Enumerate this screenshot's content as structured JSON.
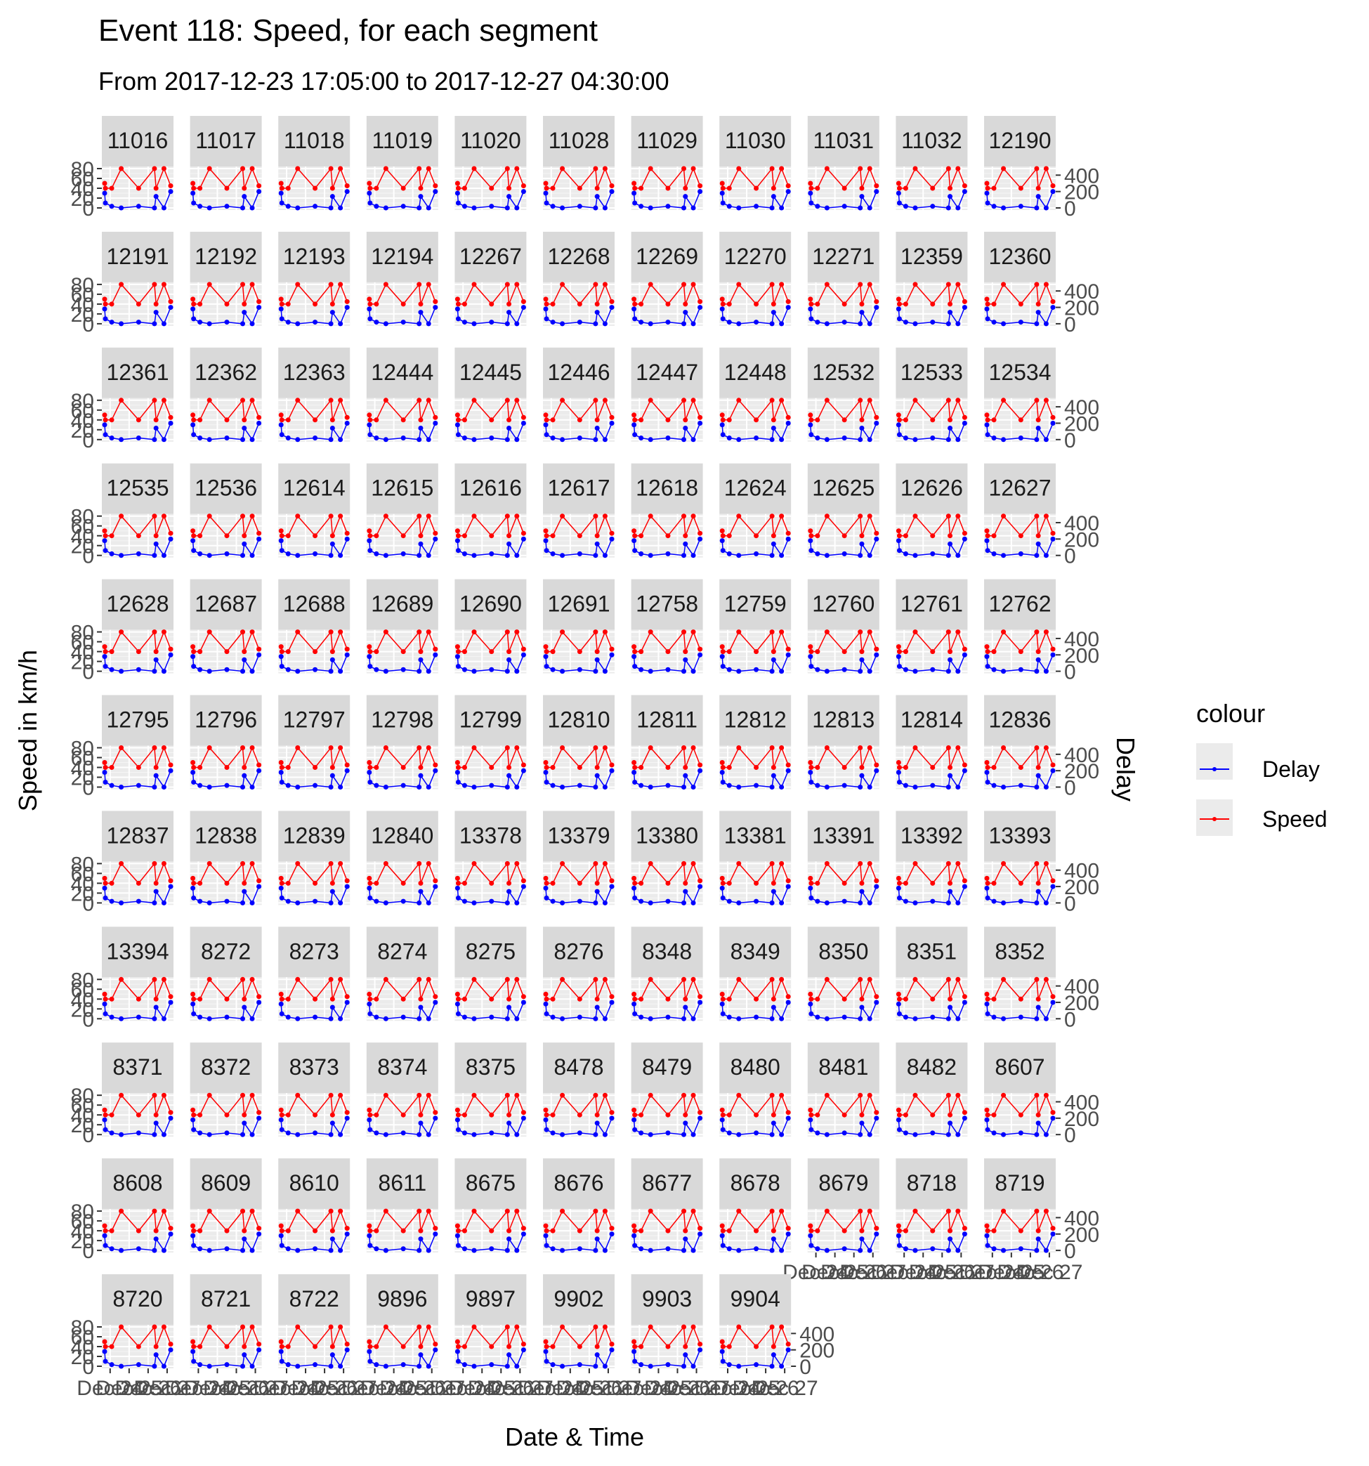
{
  "chart_data": {
    "type": "line",
    "title": "Event 118: Speed, for each segment",
    "subtitle": "From 2017-12-23 17:05:00 to 2017-12-27 04:30:00",
    "xlabel": "Date & Time",
    "ylabel": "Speed in km/h",
    "y2label": "Delay",
    "ylim": [
      0,
      80
    ],
    "y2lim": [
      0,
      480
    ],
    "y_ticks": [
      "0",
      "20",
      "40",
      "60",
      "80"
    ],
    "y2_ticks": [
      "0",
      "200",
      "400"
    ],
    "x_tick_labels": [
      "Dec 24",
      "Dec 25",
      "Dec 26",
      "Dec 27"
    ],
    "grid": true,
    "legend": {
      "title": "colour",
      "position": "right",
      "items": [
        {
          "name": "Delay",
          "color": "#0000ff"
        },
        {
          "name": "Speed",
          "color": "#ff0000"
        }
      ]
    },
    "x": [
      "2017-12-23 17:05",
      "2017-12-23 18:00",
      "2017-12-24 02:00",
      "2017-12-24 14:00",
      "2017-12-25 12:00",
      "2017-12-26 08:00",
      "2017-12-26 10:00",
      "2017-12-26 20:00",
      "2017-12-27 04:30"
    ],
    "segments": [
      "11016",
      "11017",
      "11018",
      "11019",
      "11020",
      "11028",
      "11029",
      "11030",
      "11031",
      "11032",
      "12190",
      "12191",
      "12192",
      "12193",
      "12194",
      "12267",
      "12268",
      "12269",
      "12270",
      "12271",
      "12359",
      "12360",
      "12361",
      "12362",
      "12363",
      "12444",
      "12445",
      "12446",
      "12447",
      "12448",
      "12532",
      "12533",
      "12534",
      "12535",
      "12536",
      "12614",
      "12615",
      "12616",
      "12617",
      "12618",
      "12624",
      "12625",
      "12626",
      "12627",
      "12628",
      "12687",
      "12688",
      "12689",
      "12690",
      "12691",
      "12758",
      "12759",
      "12760",
      "12761",
      "12762",
      "12795",
      "12796",
      "12797",
      "12798",
      "12799",
      "12810",
      "12811",
      "12812",
      "12813",
      "12814",
      "12836",
      "12837",
      "12838",
      "12839",
      "12840",
      "13378",
      "13379",
      "13380",
      "13381",
      "13391",
      "13392",
      "13393",
      "13394",
      "8272",
      "8273",
      "8274",
      "8275",
      "8276",
      "8348",
      "8349",
      "8350",
      "8351",
      "8352",
      "8371",
      "8372",
      "8373",
      "8374",
      "8375",
      "8478",
      "8479",
      "8480",
      "8481",
      "8482",
      "8607",
      "8608",
      "8609",
      "8610",
      "8611",
      "8675",
      "8676",
      "8677",
      "8678",
      "8679",
      "8718",
      "8719",
      "8720",
      "8721",
      "8722",
      "9896",
      "9897",
      "9902",
      "9903",
      "9904"
    ],
    "series": [
      {
        "name": "Speed",
        "values": [
          50,
          40,
          40,
          80,
          40,
          80,
          40,
          80,
          45
        ]
      },
      {
        "name": "Delay",
        "values": [
          180,
          60,
          20,
          0,
          20,
          0,
          140,
          0,
          200
        ]
      }
    ]
  }
}
